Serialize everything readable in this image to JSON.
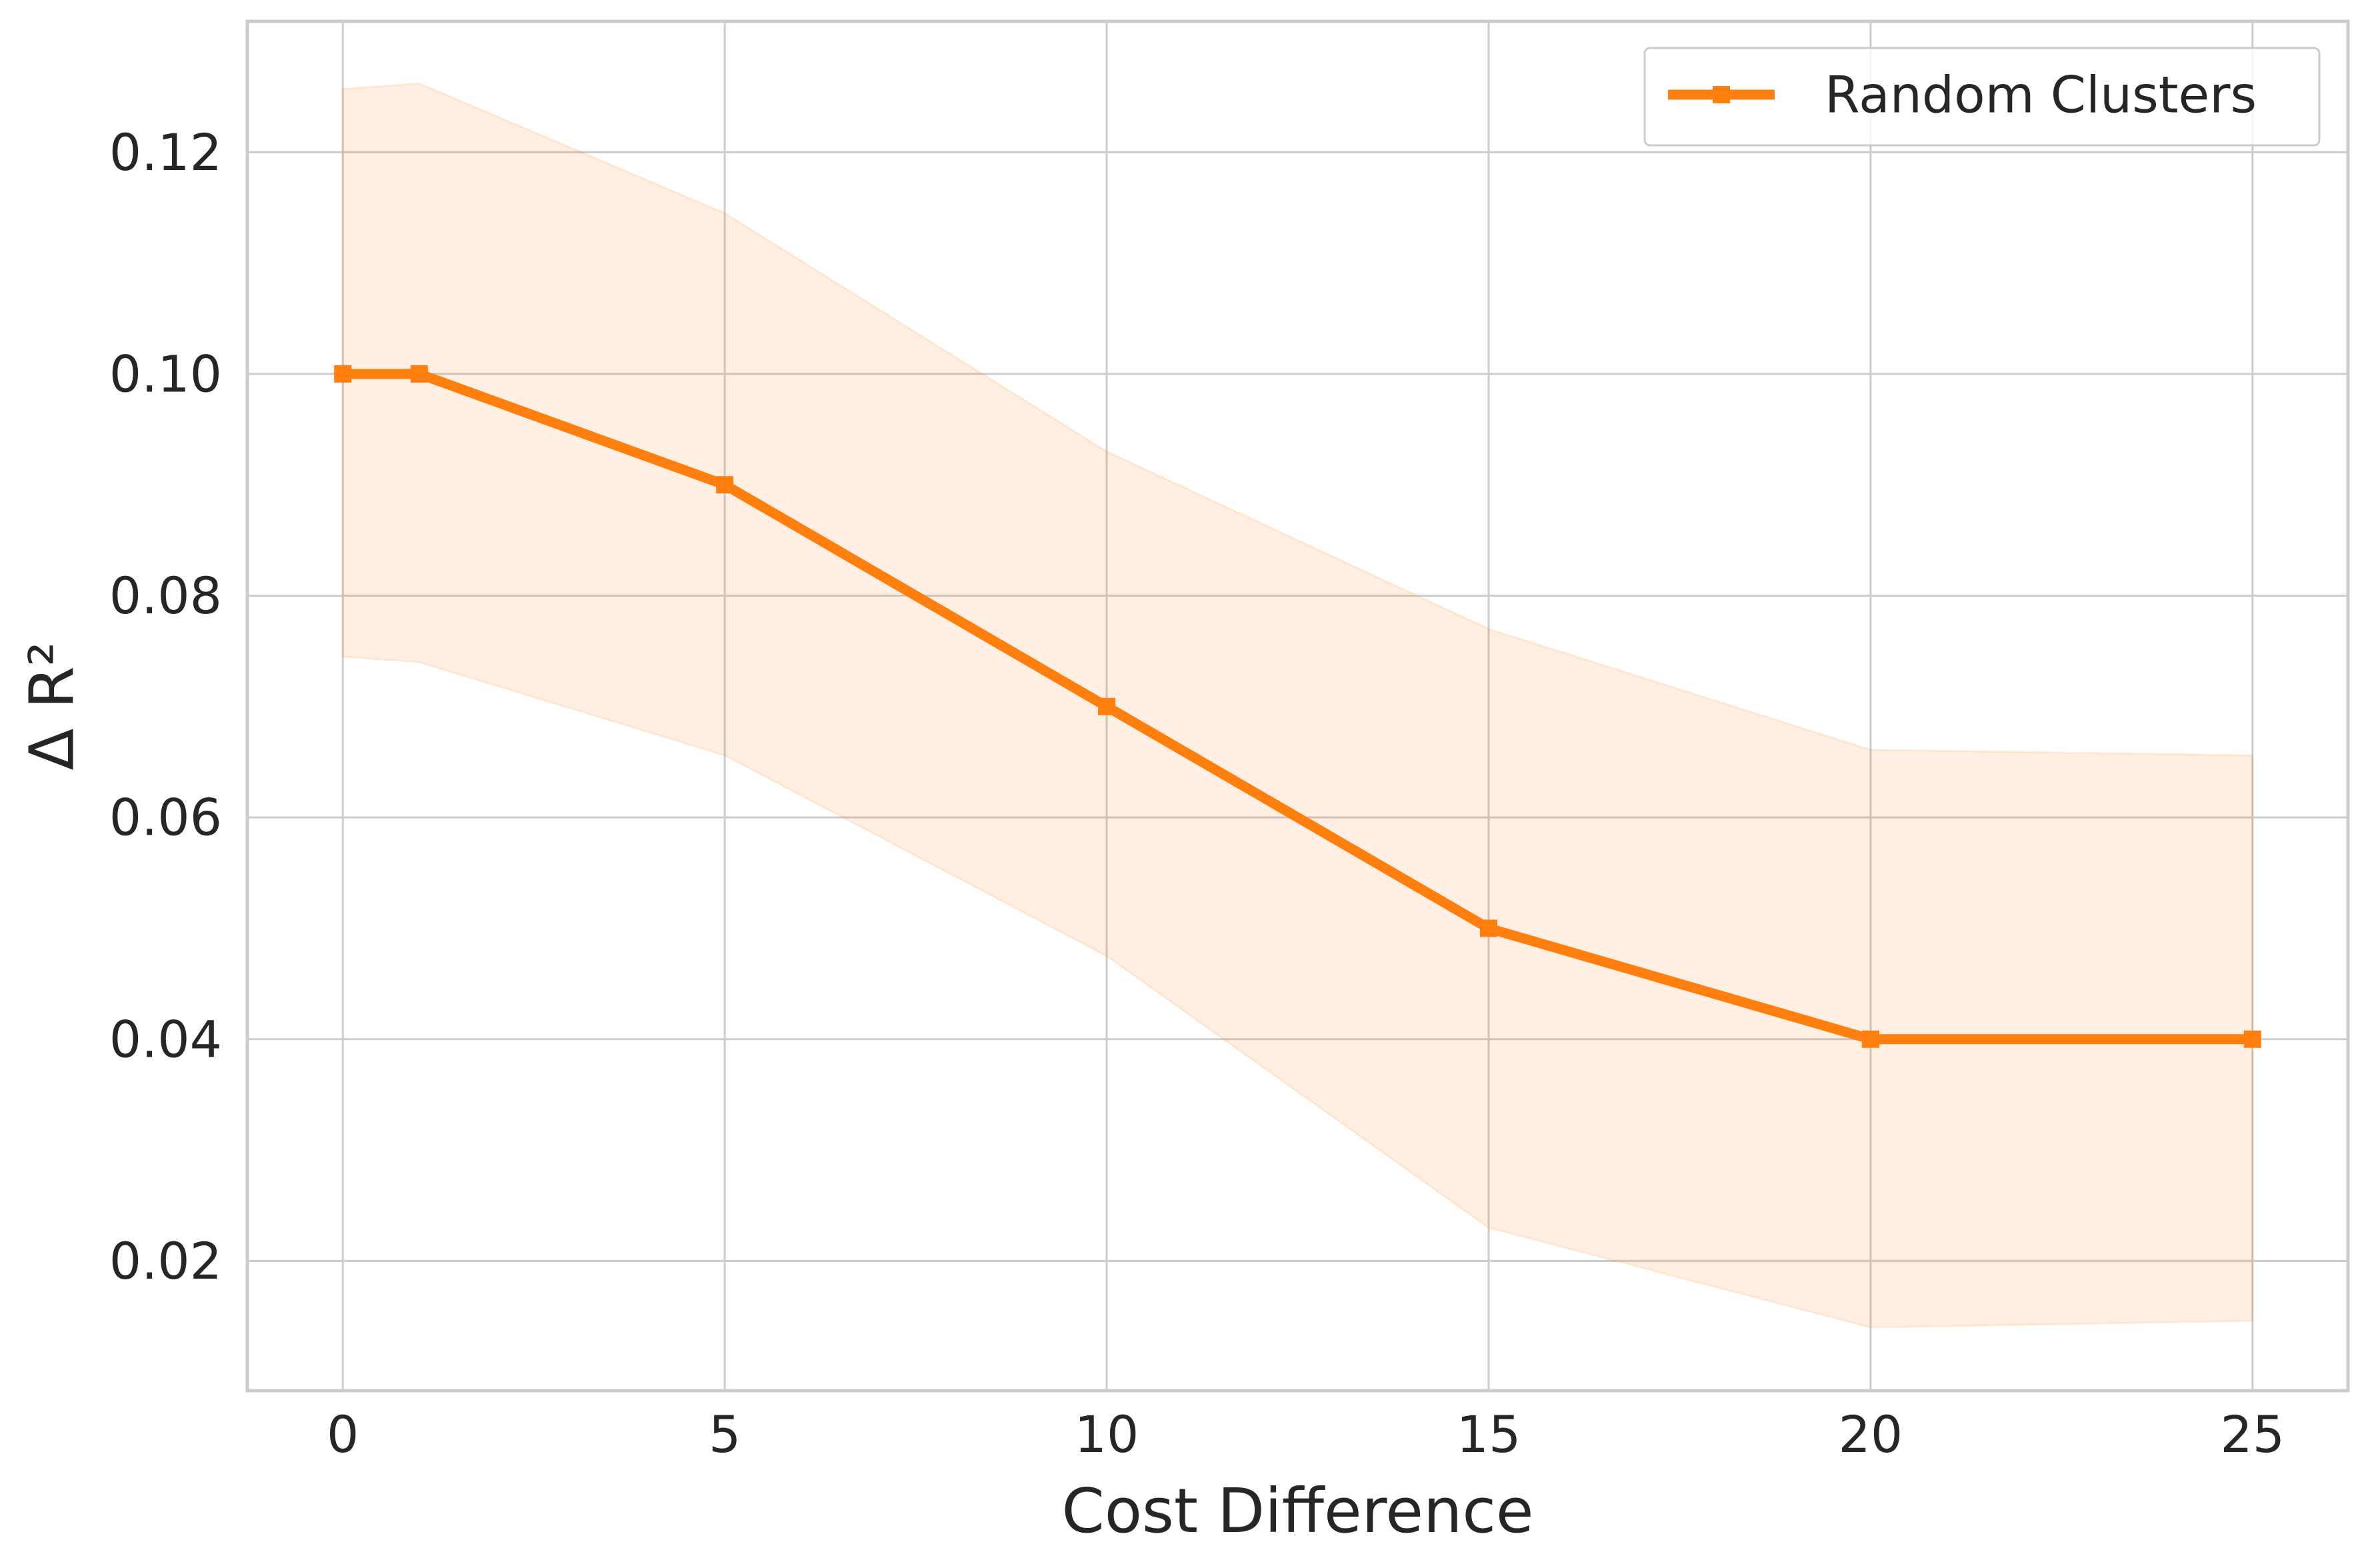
{
  "chart_data": {
    "type": "line",
    "title": "",
    "xlabel": "Cost Difference",
    "ylabel": "Δ R²",
    "xlim": [
      -1.25,
      26.25
    ],
    "ylim": [
      0.0083,
      0.1318
    ],
    "xticks": [
      0,
      5,
      10,
      15,
      20,
      25
    ],
    "xtick_labels": [
      "0",
      "5",
      "10",
      "15",
      "20",
      "25"
    ],
    "yticks": [
      0.02,
      0.04,
      0.06,
      0.08,
      0.1,
      0.12
    ],
    "ytick_labels": [
      "0.02",
      "0.04",
      "0.06",
      "0.08",
      "0.10",
      "0.12"
    ],
    "grid": true,
    "legend_position": "top-right",
    "series": [
      {
        "name": "Random Clusters",
        "color": "#ff7f0e",
        "marker": "square",
        "x": [
          0,
          1,
          5,
          10,
          15,
          20,
          25
        ],
        "y": [
          0.1,
          0.1,
          0.09,
          0.07,
          0.05,
          0.04,
          0.04
        ],
        "band_upper": [
          0.1257,
          0.1262,
          0.1145,
          0.093,
          0.077,
          0.0661,
          0.0656
        ],
        "band_lower": [
          0.0745,
          0.074,
          0.0656,
          0.0475,
          0.023,
          0.014,
          0.0146
        ]
      }
    ]
  }
}
